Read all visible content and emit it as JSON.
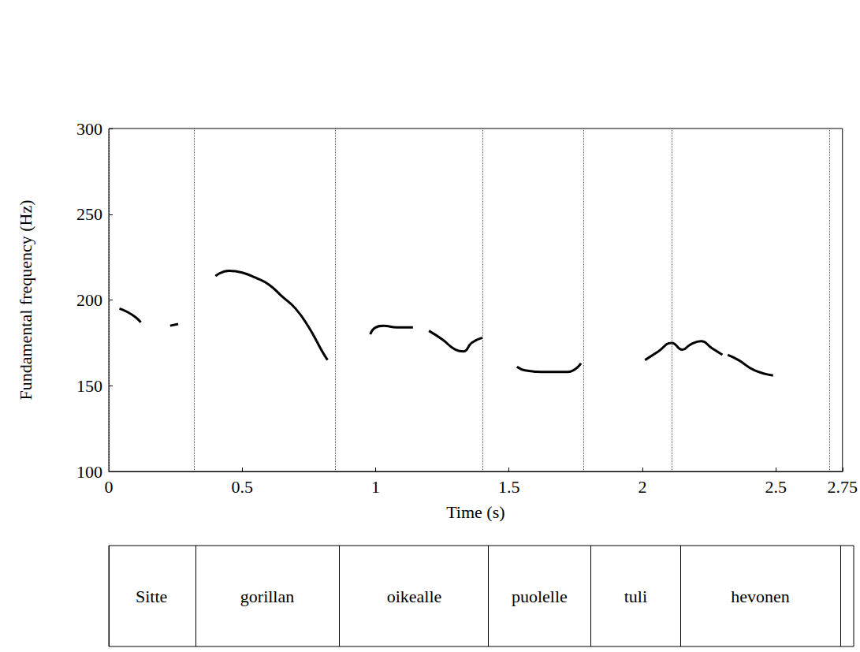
{
  "chart_data": {
    "type": "line",
    "x_label": "Time (s)",
    "y_label": "Fundamental frequency (Hz)",
    "xlim": [
      0,
      2.75
    ],
    "xticks": [
      0,
      0.5,
      1,
      1.5,
      2,
      2.5
    ],
    "ylim": [
      100,
      300
    ],
    "yticks": [
      100,
      150,
      200,
      250,
      300
    ],
    "grid": false,
    "color": "#000000",
    "x": [
      0.04,
      0.07,
      0.1,
      0.12,
      0.17,
      0.23,
      0.26,
      0.33,
      0.4,
      0.45,
      0.5,
      0.55,
      0.6,
      0.65,
      0.7,
      0.75,
      0.8,
      0.82,
      0.9,
      0.98,
      1.0,
      1.03,
      1.08,
      1.14,
      1.17,
      1.2,
      1.25,
      1.3,
      1.33,
      1.36,
      1.4,
      1.46,
      1.53,
      1.56,
      1.65,
      1.72,
      1.77,
      1.9,
      2.01,
      2.06,
      2.11,
      2.15,
      2.18,
      2.22,
      2.26,
      2.3,
      2.31,
      2.32,
      2.36,
      2.42,
      2.49
    ],
    "values": [
      195,
      193,
      190,
      187,
      null,
      185,
      186,
      null,
      214,
      217,
      216,
      213,
      209,
      202,
      195,
      184,
      170,
      165,
      null,
      180,
      184,
      185,
      184,
      184,
      null,
      182,
      177,
      171,
      170,
      175,
      178,
      null,
      161,
      159,
      158,
      158,
      163,
      null,
      165,
      170,
      175,
      171,
      174,
      176,
      172,
      168,
      null,
      168,
      165,
      159,
      156
    ],
    "segments": {
      "labels": [
        "Sitte",
        "gorillan",
        "oikealle",
        "puolelle",
        "tuli",
        "hevonen"
      ],
      "boundaries": [
        0,
        0.315,
        0.855,
        1.4,
        1.78,
        2.11,
        2.7
      ]
    }
  }
}
